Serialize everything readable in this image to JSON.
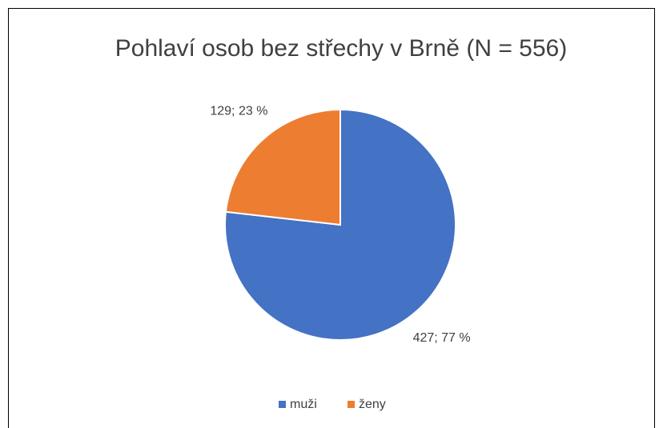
{
  "chart_data": {
    "type": "pie",
    "title": "Pohlaví osob bez střechy v Brně (N = 556)",
    "categories": [
      "muži",
      "ženy"
    ],
    "values": [
      427,
      129
    ],
    "value_labels": [
      "427; 77 %",
      "129; 23 %"
    ],
    "colors": [
      "#4472c4",
      "#ed7d31"
    ],
    "legend": "bottom"
  }
}
